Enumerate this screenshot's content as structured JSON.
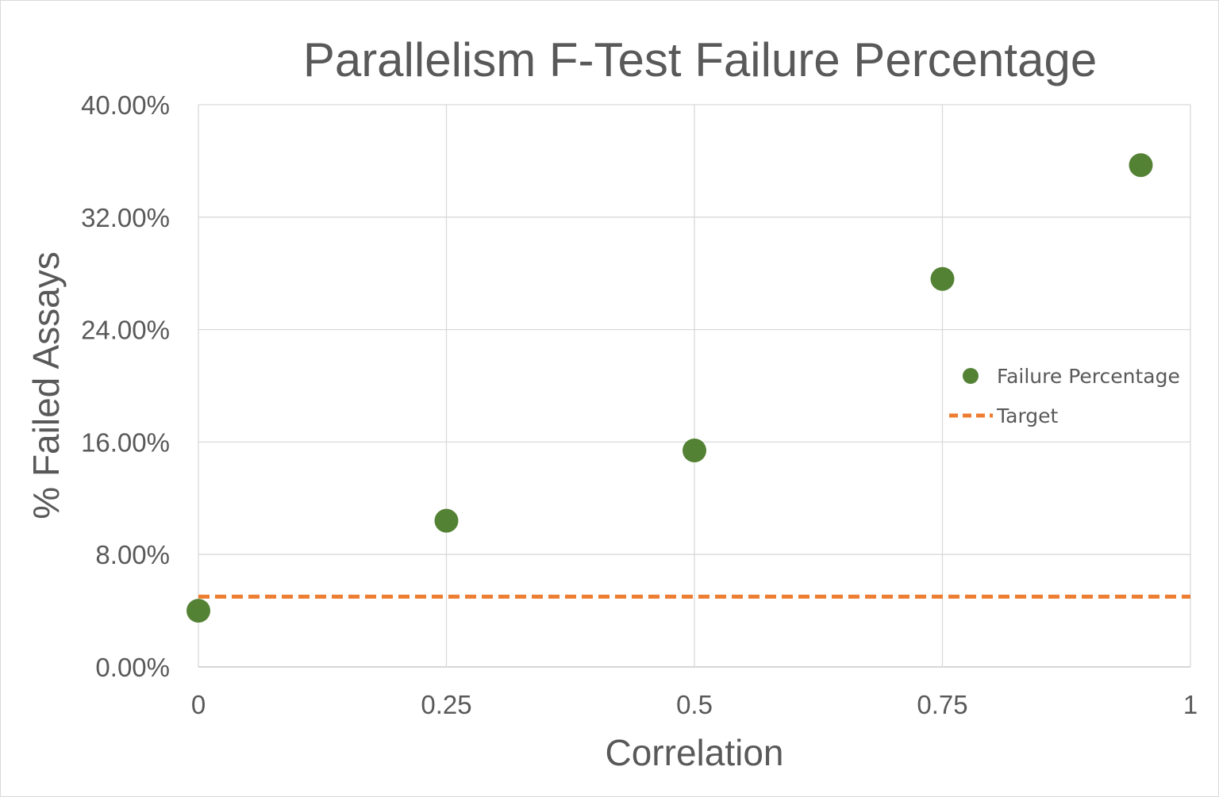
{
  "chart_data": {
    "type": "scatter",
    "title": "Parallelism F-Test Failure Percentage",
    "xlabel": "Correlation",
    "ylabel": "% Failed Assays",
    "xlim": [
      0,
      1
    ],
    "ylim": [
      0,
      0.4
    ],
    "x_ticks": [
      {
        "value": 0,
        "label": "0"
      },
      {
        "value": 0.25,
        "label": "0.25"
      },
      {
        "value": 0.5,
        "label": "0.5"
      },
      {
        "value": 0.75,
        "label": "0.75"
      },
      {
        "value": 1,
        "label": "1"
      }
    ],
    "y_ticks": [
      {
        "value": 0,
        "label": "0.00%"
      },
      {
        "value": 0.08,
        "label": "8.00%"
      },
      {
        "value": 0.16,
        "label": "16.00%"
      },
      {
        "value": 0.24,
        "label": "24.00%"
      },
      {
        "value": 0.32,
        "label": "32.00%"
      },
      {
        "value": 0.4,
        "label": "40.00%"
      }
    ],
    "grid": true,
    "legend_position": "right",
    "series": [
      {
        "name": "Failure Percentage",
        "kind": "scatter",
        "color": "#548235",
        "x": [
          0,
          0.25,
          0.5,
          0.75,
          0.95
        ],
        "y": [
          0.04,
          0.104,
          0.154,
          0.276,
          0.357
        ]
      },
      {
        "name": "Target",
        "kind": "line-dashed",
        "color": "#ed7d31",
        "x": [
          0,
          1
        ],
        "y": [
          0.05,
          0.05
        ]
      }
    ]
  }
}
